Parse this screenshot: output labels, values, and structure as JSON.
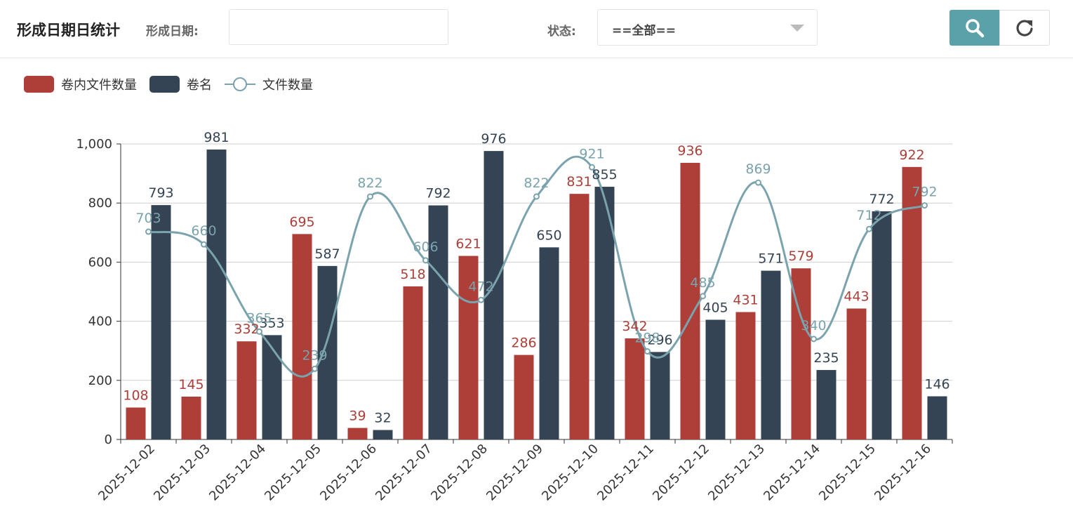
{
  "header": {
    "title": "形成日期日统计",
    "date_label": "形成日期:",
    "date_value": "",
    "status_label": "状态:",
    "status_value": "==全部=="
  },
  "icons": {
    "search": "search-icon",
    "refresh": "refresh-icon",
    "dropdown": "chevron-down-icon"
  },
  "colors": {
    "series_red": "#ad3e38",
    "series_dark": "#344454",
    "series_line": "#7aa3ad",
    "search_button": "#5ba1a9"
  },
  "chart_data": {
    "type": "bar",
    "categories": [
      "2025-12-02",
      "2025-12-03",
      "2025-12-04",
      "2025-12-05",
      "2025-12-06",
      "2025-12-07",
      "2025-12-08",
      "2025-12-09",
      "2025-12-10",
      "2025-12-11",
      "2025-12-12",
      "2025-12-13",
      "2025-12-14",
      "2025-12-15",
      "2025-12-16"
    ],
    "series": [
      {
        "name": "卷内文件数量",
        "type": "bar",
        "color": "#ad3e38",
        "values": [
          108,
          145,
          332,
          695,
          39,
          518,
          621,
          286,
          831,
          342,
          936,
          431,
          579,
          443,
          922
        ]
      },
      {
        "name": "卷名",
        "type": "bar",
        "color": "#344454",
        "values": [
          793,
          981,
          353,
          587,
          32,
          792,
          976,
          650,
          855,
          296,
          405,
          571,
          235,
          772,
          146
        ]
      },
      {
        "name": "文件数量",
        "type": "line",
        "smooth": true,
        "color": "#7aa3ad",
        "values": [
          703,
          660,
          365,
          239,
          822,
          606,
          472,
          822,
          921,
          298,
          485,
          869,
          340,
          712,
          792
        ]
      }
    ],
    "ylim": [
      0,
      1000
    ],
    "yticks": [
      "0",
      "200",
      "400",
      "600",
      "800",
      "1,000"
    ],
    "grid": true,
    "legend_position": "top-left",
    "data_labels": true
  }
}
